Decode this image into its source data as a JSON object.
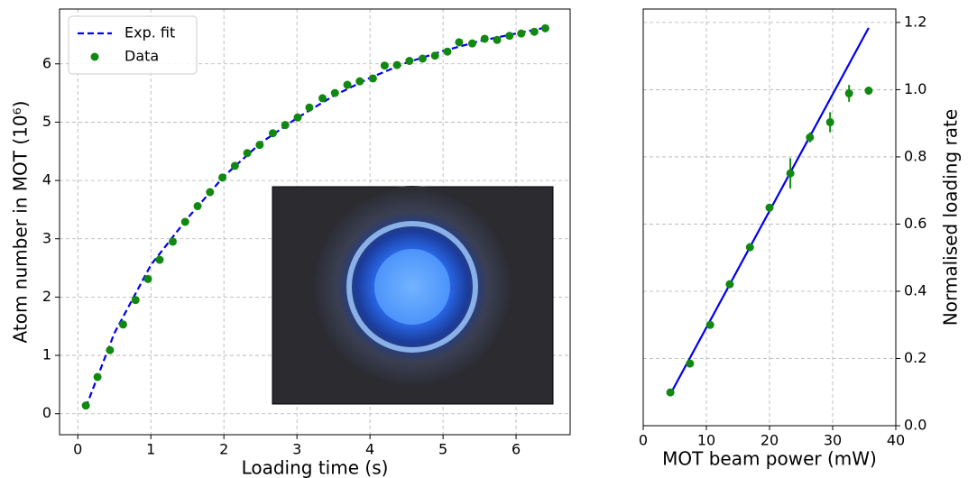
{
  "chart_data": [
    {
      "type": "scatter",
      "xlabel": "Loading time (s)",
      "ylabel": "Atom number in MOT (10⁶)",
      "xlim": [
        -0.25,
        6.74
      ],
      "ylim": [
        -0.36,
        6.94
      ],
      "xticks": [
        0,
        1,
        2,
        3,
        4,
        5,
        6
      ],
      "yticks": [
        0,
        1,
        2,
        3,
        4,
        5,
        6
      ],
      "grid": true,
      "legend": "upper left",
      "yaxis_position": "left",
      "series": [
        {
          "name": "Exp. fit",
          "type": "line",
          "linestyle": "dashed",
          "color": "#0000ee",
          "x": [
            0.11,
            0.5,
            1,
            1.5,
            2,
            2.5,
            3,
            3.5,
            4,
            4.5,
            5,
            5.5,
            6,
            6.4
          ],
          "values": [
            0.11,
            1.38,
            2.55,
            3.35,
            4.07,
            4.64,
            5.07,
            5.45,
            5.76,
            6.02,
            6.22,
            6.39,
            6.52,
            6.62
          ]
        },
        {
          "name": "Data",
          "type": "scatter",
          "color": "#118811",
          "x": [
            0.11,
            0.27,
            0.44,
            0.62,
            0.79,
            0.96,
            1.12,
            1.3,
            1.47,
            1.64,
            1.81,
            1.98,
            2.15,
            2.32,
            2.49,
            2.67,
            2.84,
            3.01,
            3.17,
            3.35,
            3.52,
            3.69,
            3.86,
            4.04,
            4.2,
            4.37,
            4.54,
            4.72,
            4.89,
            5.06,
            5.22,
            5.4,
            5.57,
            5.74,
            5.91,
            6.07,
            6.25,
            6.4
          ],
          "values": [
            0.14,
            0.63,
            1.09,
            1.53,
            1.95,
            2.31,
            2.64,
            2.95,
            3.29,
            3.56,
            3.8,
            4.05,
            4.25,
            4.47,
            4.61,
            4.81,
            4.95,
            5.08,
            5.25,
            5.41,
            5.5,
            5.64,
            5.7,
            5.75,
            5.97,
            5.98,
            6.05,
            6.09,
            6.14,
            6.21,
            6.37,
            6.35,
            6.43,
            6.41,
            6.48,
            6.52,
            6.55,
            6.61
          ]
        }
      ]
    },
    {
      "type": "scatter",
      "xlabel": "MOT beam power (mW)",
      "ylabel": "Normalised loading rate",
      "xlim": [
        0,
        40
      ],
      "ylim": [
        0,
        1.24
      ],
      "xticks": [
        0,
        10,
        20,
        30,
        40
      ],
      "yticks": [
        {
          "value": 0,
          "label": "0.0"
        },
        0.2,
        0.4,
        0.6,
        0.8,
        {
          "value": 1,
          "label": "1.0"
        },
        1.2
      ],
      "grid": true,
      "yaxis_position": "right",
      "series": [
        {
          "type": "line",
          "linestyle": "solid",
          "color": "#0000ee",
          "x": [
            4.3,
            35.7
          ],
          "values": [
            0.094,
            1.184
          ]
        },
        {
          "type": "scatter",
          "color": "#118811",
          "x": [
            4.3,
            7.4,
            10.6,
            13.7,
            16.9,
            20.0,
            23.3,
            26.4,
            29.6,
            32.6,
            35.7
          ],
          "values": [
            0.099,
            0.185,
            0.3,
            0.421,
            0.531,
            0.649,
            0.751,
            0.858,
            0.903,
            0.989,
            0.997
          ],
          "errors": [
            0.01,
            0.008,
            0.008,
            0.008,
            0.012,
            0.01,
            0.045,
            0.015,
            0.03,
            0.025,
            0.012
          ]
        }
      ]
    }
  ]
}
